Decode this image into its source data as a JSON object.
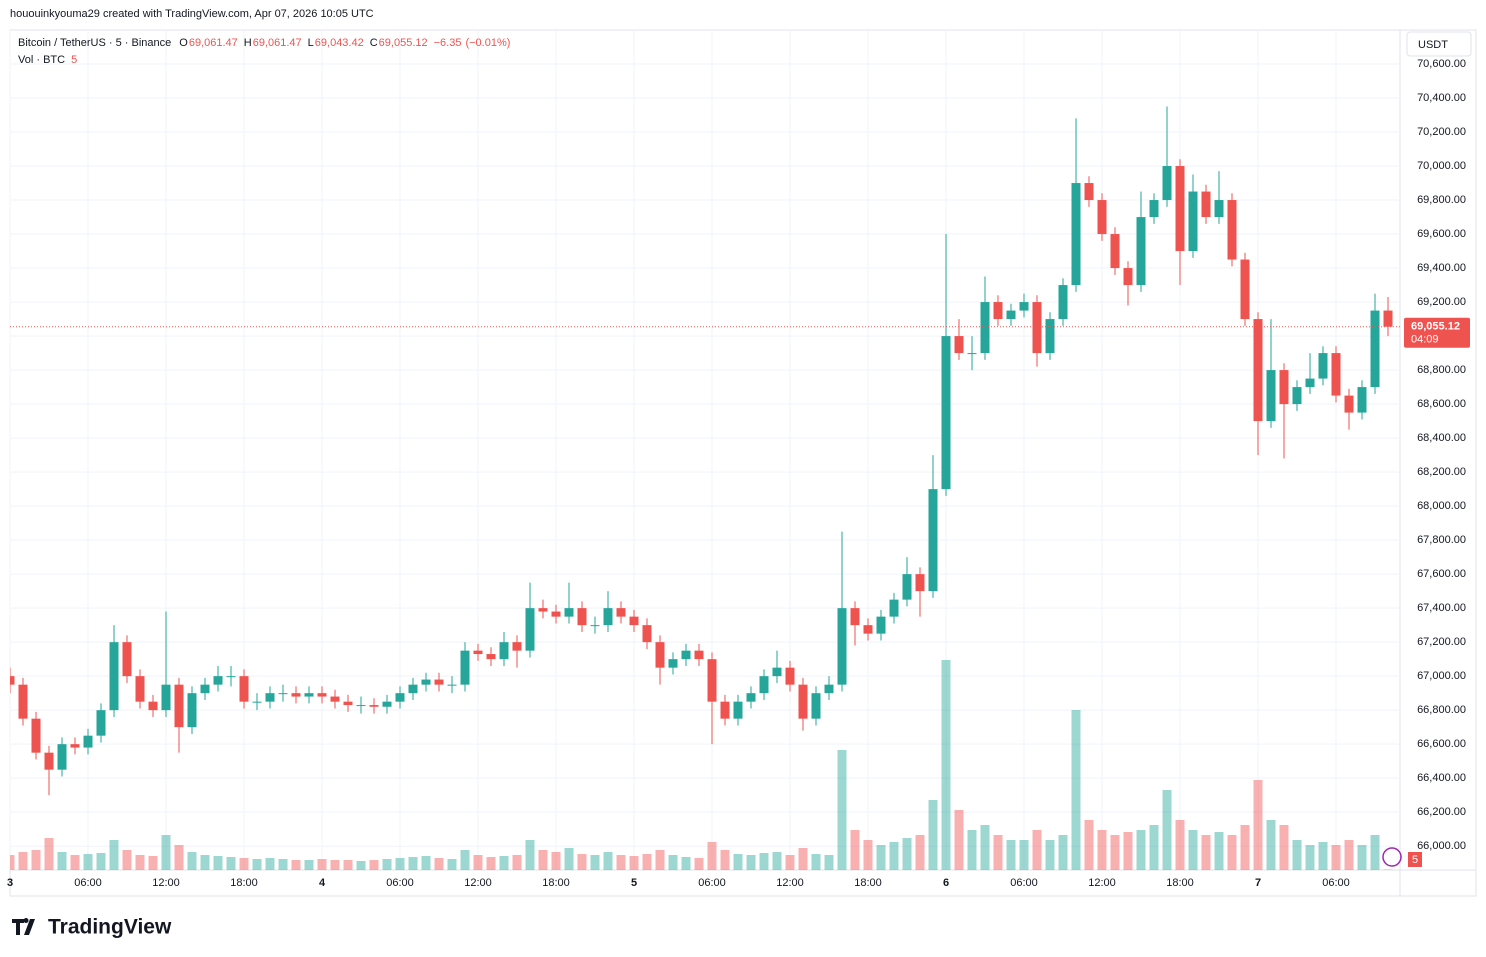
{
  "watermark": "hououinkyouma29 created with TradingView.com, Apr 07, 2026 10:05 UTC",
  "brand": "TradingView",
  "chart_data": {
    "type": "candlestick",
    "symbol": "Bitcoin / TetherUS · 5 · Binance",
    "ohlc_legend": [
      {
        "key": "O",
        "value": 69061.47,
        "label": "69,061.47"
      },
      {
        "key": "H",
        "value": 69061.47,
        "label": "69,061.47"
      },
      {
        "key": "L",
        "value": 69043.42,
        "label": "69,043.42"
      },
      {
        "key": "C",
        "value": 69055.12,
        "label": "69,055.12"
      }
    ],
    "change": [
      {
        "value": -6.35,
        "label": "−6.35"
      },
      {
        "value": -0.01,
        "label": "(−0.01%)"
      }
    ],
    "volume_label": "Vol · BTC",
    "currency": "USDT",
    "last_price": {
      "value": 69055.12,
      "label": "69,055.12"
    },
    "countdown": "04:09",
    "up_color": "#26a69a",
    "down_color": "#ef5350",
    "grid": true,
    "categories": [
      "3",
      null,
      null,
      null,
      null,
      null,
      "06:00",
      null,
      null,
      null,
      null,
      null,
      "12:00",
      null,
      null,
      null,
      null,
      null,
      "18:00",
      null,
      null,
      null,
      null,
      null,
      "4",
      null,
      null,
      null,
      null,
      null,
      "06:00",
      null,
      null,
      null,
      null,
      null,
      "12:00",
      null,
      null,
      null,
      null,
      null,
      "18:00",
      null,
      null,
      null,
      null,
      null,
      "5",
      null,
      null,
      null,
      null,
      null,
      "06:00",
      null,
      null,
      null,
      null,
      null,
      "12:00",
      null,
      null,
      null,
      null,
      null,
      "18:00",
      null,
      null,
      null,
      null,
      null,
      "6",
      null,
      null,
      null,
      null,
      null,
      "06:00",
      null,
      null,
      null,
      null,
      null,
      "12:00",
      null,
      null,
      null,
      null,
      null,
      "18:00",
      null,
      null,
      null,
      null,
      null,
      "7",
      null,
      null,
      null,
      null,
      null,
      "06:00",
      null,
      null,
      null,
      null
    ],
    "open": [
      67000,
      66950,
      66750,
      66550,
      66450,
      66600,
      66580,
      66650,
      66800,
      67200,
      67000,
      66850,
      66800,
      66950,
      66700,
      66900,
      66950,
      67000,
      67000,
      66850,
      66850,
      66900,
      66900,
      66880,
      66900,
      66880,
      66850,
      66830,
      66830,
      66820,
      66850,
      66900,
      66950,
      66980,
      66950,
      66950,
      67150,
      67130,
      67100,
      67200,
      67150,
      67400,
      67380,
      67350,
      67400,
      67300,
      67300,
      67400,
      67350,
      67300,
      67200,
      67050,
      67100,
      67150,
      67100,
      66850,
      66750,
      66850,
      66900,
      67000,
      67050,
      66950,
      66750,
      66900,
      66950,
      67400,
      67300,
      67250,
      67350,
      67450,
      67600,
      67500,
      68100,
      69000,
      68900,
      68900,
      69200,
      69100,
      69150,
      69200,
      68900,
      69100,
      69300,
      69900,
      69800,
      69600,
      69400,
      69300,
      69700,
      69800,
      70000,
      69500,
      69850,
      69700,
      69800,
      69450,
      69100,
      68500,
      68800,
      68600,
      68700,
      68750,
      68900,
      68650,
      68550,
      68700,
      69150
    ],
    "high": [
      67050,
      66990,
      66790,
      66590,
      66640,
      66640,
      66690,
      66840,
      67300,
      67240,
      67040,
      66890,
      67380,
      66990,
      66940,
      66990,
      67060,
      67060,
      67040,
      66900,
      66940,
      66950,
      66940,
      66940,
      66940,
      66920,
      66890,
      66880,
      66870,
      66890,
      66940,
      66990,
      67020,
      67020,
      67000,
      67200,
      67190,
      67170,
      67260,
      67240,
      67550,
      67450,
      67420,
      67550,
      67440,
      67350,
      67500,
      67440,
      67390,
      67340,
      67240,
      67140,
      67190,
      67190,
      67140,
      66890,
      66890,
      66940,
      67040,
      67150,
      67090,
      66990,
      66940,
      67000,
      67850,
      67440,
      67340,
      67390,
      67490,
      67700,
      67640,
      68300,
      69600,
      69100,
      69000,
      69350,
      69240,
      69190,
      69250,
      69240,
      69140,
      69340,
      70280,
      69940,
      69840,
      69640,
      69440,
      69850,
      69840,
      70350,
      70040,
      69950,
      69890,
      69970,
      69840,
      69490,
      69140,
      69100,
      68840,
      68740,
      68900,
      68940,
      68940,
      68690,
      68740,
      69250,
      69230
    ],
    "low": [
      66900,
      66710,
      66510,
      66300,
      66410,
      66540,
      66540,
      66610,
      66760,
      66960,
      66810,
      66760,
      66760,
      66550,
      66660,
      66860,
      66910,
      66940,
      66810,
      66800,
      66810,
      66850,
      66840,
      66840,
      66840,
      66810,
      66790,
      66780,
      66780,
      66780,
      66810,
      66860,
      66910,
      66910,
      66900,
      66910,
      67090,
      67060,
      67060,
      67050,
      67110,
      67340,
      67310,
      67310,
      67260,
      67250,
      67260,
      67310,
      67260,
      67160,
      66950,
      67010,
      67060,
      67060,
      66600,
      66710,
      66710,
      66810,
      66860,
      66960,
      66910,
      66680,
      66710,
      66860,
      66910,
      67180,
      67210,
      67210,
      67310,
      67410,
      67350,
      67460,
      68060,
      68860,
      68800,
      68860,
      69060,
      69060,
      69110,
      68820,
      68860,
      69060,
      69260,
      69760,
      69560,
      69360,
      69180,
      69260,
      69660,
      69760,
      69300,
      69460,
      69660,
      69660,
      69410,
      69060,
      68300,
      68460,
      68280,
      68560,
      68660,
      68710,
      68610,
      68450,
      68510,
      68660,
      69000
    ],
    "close": [
      66950,
      66750,
      66550,
      66450,
      66600,
      66580,
      66650,
      66800,
      67200,
      67000,
      66850,
      66800,
      66950,
      66700,
      66900,
      66950,
      67000,
      67000,
      66850,
      66850,
      66900,
      66900,
      66880,
      66900,
      66880,
      66850,
      66830,
      66830,
      66820,
      66850,
      66900,
      66950,
      66980,
      66950,
      66950,
      67150,
      67130,
      67100,
      67200,
      67150,
      67400,
      67380,
      67350,
      67400,
      67300,
      67300,
      67400,
      67350,
      67300,
      67200,
      67050,
      67100,
      67150,
      67100,
      66850,
      66750,
      66850,
      66900,
      67000,
      67050,
      66950,
      66750,
      66900,
      66950,
      67400,
      67300,
      67250,
      67350,
      67450,
      67600,
      67500,
      68100,
      69000,
      68900,
      68900,
      69200,
      69100,
      69150,
      69200,
      68900,
      69100,
      69300,
      69900,
      69800,
      69600,
      69400,
      69300,
      69700,
      69800,
      70000,
      69500,
      69850,
      69700,
      69800,
      69450,
      69100,
      68500,
      68800,
      68600,
      68700,
      68750,
      68900,
      68650,
      68550,
      68700,
      69150,
      69055.12
    ],
    "volume": [
      150,
      180,
      200,
      320,
      180,
      150,
      160,
      170,
      300,
      200,
      150,
      140,
      350,
      250,
      180,
      150,
      140,
      130,
      120,
      110,
      120,
      110,
      100,
      100,
      110,
      100,
      100,
      90,
      100,
      110,
      120,
      130,
      140,
      120,
      110,
      200,
      150,
      130,
      140,
      150,
      300,
      200,
      180,
      220,
      160,
      150,
      180,
      150,
      140,
      160,
      200,
      150,
      130,
      120,
      280,
      200,
      160,
      150,
      170,
      180,
      150,
      220,
      160,
      150,
      1200,
      400,
      300,
      250,
      280,
      320,
      350,
      700,
      2100,
      600,
      400,
      450,
      350,
      300,
      300,
      400,
      300,
      350,
      1600,
      500,
      400,
      350,
      380,
      400,
      450,
      800,
      500,
      400,
      350,
      380,
      350,
      450,
      900,
      500,
      450,
      300,
      250,
      280,
      250,
      300,
      250,
      350,
      5
    ],
    "vlim": [
      0,
      2400
    ],
    "ylim": [
      65860,
      70800
    ],
    "yticks": [
      {
        "value": 66000,
        "label": "66,000.00"
      },
      {
        "value": 66200,
        "label": "66,200.00"
      },
      {
        "value": 66400,
        "label": "66,400.00"
      },
      {
        "value": 66600,
        "label": "66,600.00"
      },
      {
        "value": 66800,
        "label": "66,800.00"
      },
      {
        "value": 67000,
        "label": "67,000.00"
      },
      {
        "value": 67200,
        "label": "67,200.00"
      },
      {
        "value": 67400,
        "label": "67,400.00"
      },
      {
        "value": 67600,
        "label": "67,600.00"
      },
      {
        "value": 67800,
        "label": "67,800.00"
      },
      {
        "value": 68000,
        "label": "68,000.00"
      },
      {
        "value": 68200,
        "label": "68,200.00"
      },
      {
        "value": 68400,
        "label": "68,400.00"
      },
      {
        "value": 68600,
        "label": "68,600.00"
      },
      {
        "value": 68800,
        "label": "68,800.00"
      },
      {
        "value": 69000,
        "label": "69,000.00"
      },
      {
        "value": 69200,
        "label": "69,200.00"
      },
      {
        "value": 69400,
        "label": "69,400.00"
      },
      {
        "value": 69600,
        "label": "69,600.00"
      },
      {
        "value": 69800,
        "label": "69,800.00"
      },
      {
        "value": 70000,
        "label": "70,000.00"
      },
      {
        "value": 70200,
        "label": "70,200.00"
      },
      {
        "value": 70400,
        "label": "70,400.00"
      },
      {
        "value": 70600,
        "label": "70,600.00"
      }
    ]
  }
}
